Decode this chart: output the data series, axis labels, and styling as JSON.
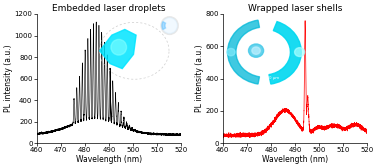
{
  "title_left": "Embedded laser droplets",
  "title_right": "Wrapped laser shells",
  "xlabel": "Wavelength (nm)",
  "ylabel": "PL intensity (a.u.)",
  "xlim": [
    460,
    520
  ],
  "ylim_left": [
    0,
    1200
  ],
  "ylim_right": [
    0,
    800
  ],
  "yticks_left": [
    0,
    200,
    400,
    600,
    800,
    1000,
    1200
  ],
  "yticks_right": [
    0,
    200,
    400,
    600,
    800
  ],
  "xticks": [
    460,
    470,
    480,
    490,
    500,
    510,
    520
  ],
  "color_left": "black",
  "color_right": "red",
  "bg_color": "white",
  "title_fontsize": 6.5,
  "axis_fontsize": 5.5,
  "tick_fontsize": 5.0
}
